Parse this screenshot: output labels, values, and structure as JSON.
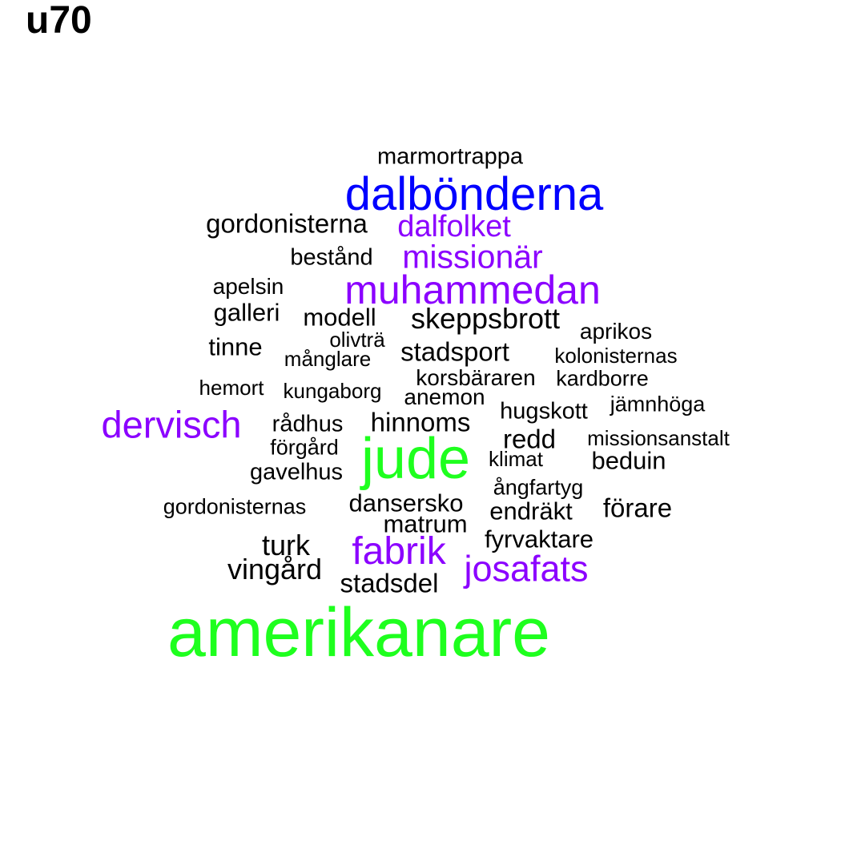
{
  "title": "u70",
  "colors": {
    "black": "#000000",
    "blue": "#0000ff",
    "purple": "#8b00ff",
    "green": "#1eff1e"
  },
  "words": {
    "marmortrappa": "marmortrappa",
    "dalbonderna": "dalbönderna",
    "gordonisterna": "gordonisterna",
    "dalfolket": "dalfolket",
    "bestand": "bestånd",
    "missionar": "missionär",
    "apelsin": "apelsin",
    "muhammedan": "muhammedan",
    "galleri": "galleri",
    "modell": "modell",
    "skeppsbrott": "skeppsbrott",
    "aprikos": "aprikos",
    "olivtra": "olivträ",
    "tinne": "tinne",
    "stadsport": "stadsport",
    "manglare": "månglare",
    "kolonisternas": "kolonisternas",
    "korsbararen": "korsbäraren",
    "kardborre": "kardborre",
    "hemort": "hemort",
    "kungaborg": "kungaborg",
    "anemon": "anemon",
    "jamnhoga": "jämnhöga",
    "hugskott": "hugskott",
    "dervisch": "dervisch",
    "radhus": "rådhus",
    "hinnoms": "hinnoms",
    "redd": "redd",
    "missionsanstalt": "missionsanstalt",
    "forgard": "förgård",
    "jude": "jude",
    "klimat": "klimat",
    "beduin": "beduin",
    "gavelhus": "gavelhus",
    "angfartyg": "ångfartyg",
    "dansersko": "dansersko",
    "gordonisternas": "gordonisternas",
    "forare": "förare",
    "endrakt": "endräkt",
    "matrum": "matrum",
    "fyrvaktare": "fyrvaktare",
    "turk": "turk",
    "fabrik": "fabrik",
    "vingard": "vingård",
    "josafats": "josafats",
    "stadsdel": "stadsdel",
    "amerikanare": "amerikanare"
  }
}
